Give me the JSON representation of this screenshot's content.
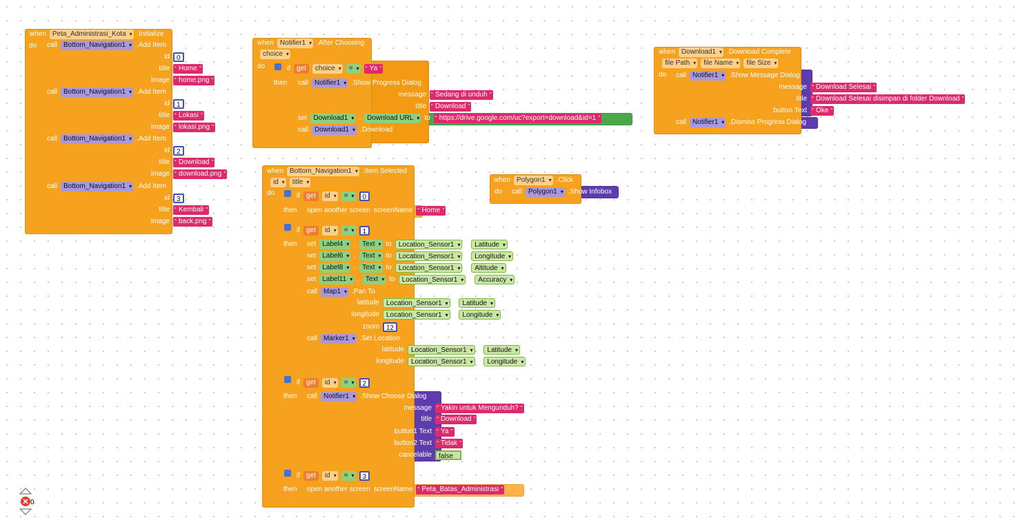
{
  "blocks": [
    {
      "items": [
        "when",
        "Peta_Administrasi_Kota",
        ".Initialize",
        "do",
        "call",
        "Bottom_Navigation1",
        ".Add Item",
        "id",
        0,
        "title",
        "Home",
        "image",
        "home.png",
        "call",
        "Bottom_Navigation1",
        ".Add Item",
        "id",
        1,
        "title",
        "Lokasi",
        "image",
        "lokasi.png",
        "call",
        "Bottom_Navigation1",
        ".Add Item",
        "id",
        2,
        "title",
        "Download",
        "image",
        "download.png",
        "call",
        "Bottom_Navigation1",
        ".Add Item",
        "id",
        3,
        "title",
        "Kembali",
        "image",
        "back.png"
      ]
    },
    {
      "items": [
        "when",
        "Notifier1",
        ".After Choosing",
        "choice",
        "do",
        "if",
        "get",
        "choice",
        "=",
        "Ya",
        "then",
        "call",
        "Notifier1",
        ".Show Progress Dialog",
        "message",
        "Sedang di unduh",
        "title",
        "Download",
        "set",
        "Download1",
        ".",
        "Download URL",
        "to",
        "https://drive.google.com/uc?export=download&id=1",
        "call",
        "Download1",
        ".Download"
      ]
    },
    {
      "items": [
        "when",
        "Download1",
        ".Download Complete",
        "file Path",
        "file Name",
        "file Size",
        "do",
        "call",
        "Notifier1",
        ".Show Message Dialog",
        "message",
        "Download Selesai",
        "title",
        "Download Selesai disimpan di folder Download",
        "button Text",
        "Oke",
        "call",
        "Notifier1",
        ".Dismiss Progress Dialog"
      ]
    },
    {
      "items": [
        "when",
        "Polygon1",
        ".Click",
        "do",
        "call",
        "Polygon1",
        ".Show Infobox"
      ]
    },
    {
      "items": [
        "when",
        "Bottom_Navigation1",
        ".Item Selected",
        "id",
        "title",
        "do",
        "if",
        "get",
        "id",
        "=",
        0,
        "then",
        "open another screen",
        "screenName",
        "Home",
        "if",
        "get",
        "id",
        "=",
        1,
        "then",
        "set",
        "Label4",
        ".",
        "Text",
        "to",
        "Location_Sensor1",
        ".",
        "Latitude",
        "set",
        "Label6",
        ".",
        "Text",
        "to",
        "Location_Sensor1",
        ".",
        "Longitude",
        "set",
        "Label8",
        ".",
        "Text",
        "to",
        "Location_Sensor1",
        ".",
        "Altitude",
        "set",
        "Label11",
        ".",
        "Text",
        "to",
        "Location_Sensor1",
        ".",
        "Accuracy",
        "call",
        "Map1",
        ".Pan To",
        "latitude",
        "Location_Sensor1",
        ".",
        "Latitude",
        "longitude",
        "Location_Sensor1",
        ".",
        "Longitude",
        "zoom",
        12,
        "call",
        "Marker1",
        ".Set Location",
        "latitude",
        "Location_Sensor1",
        ".",
        "Latitude",
        "longitude",
        "Location_Sensor1",
        ".",
        "Longitude",
        "if",
        "get",
        "id",
        "=",
        2,
        "then",
        "call",
        "Notifier1",
        ".Show Choose Dialog",
        "message",
        "Yakin untuk Mengunduh?",
        "title",
        "Download",
        "button1 Text",
        "Ya",
        "button2 Text",
        "Tidak",
        "cancelable",
        "false",
        "if",
        "get",
        "id",
        "=",
        3,
        "then",
        "open another screen",
        "screenName",
        "Peta_Batas_Administrasi"
      ]
    }
  ],
  "workspace": {
    "error_count": 0
  }
}
